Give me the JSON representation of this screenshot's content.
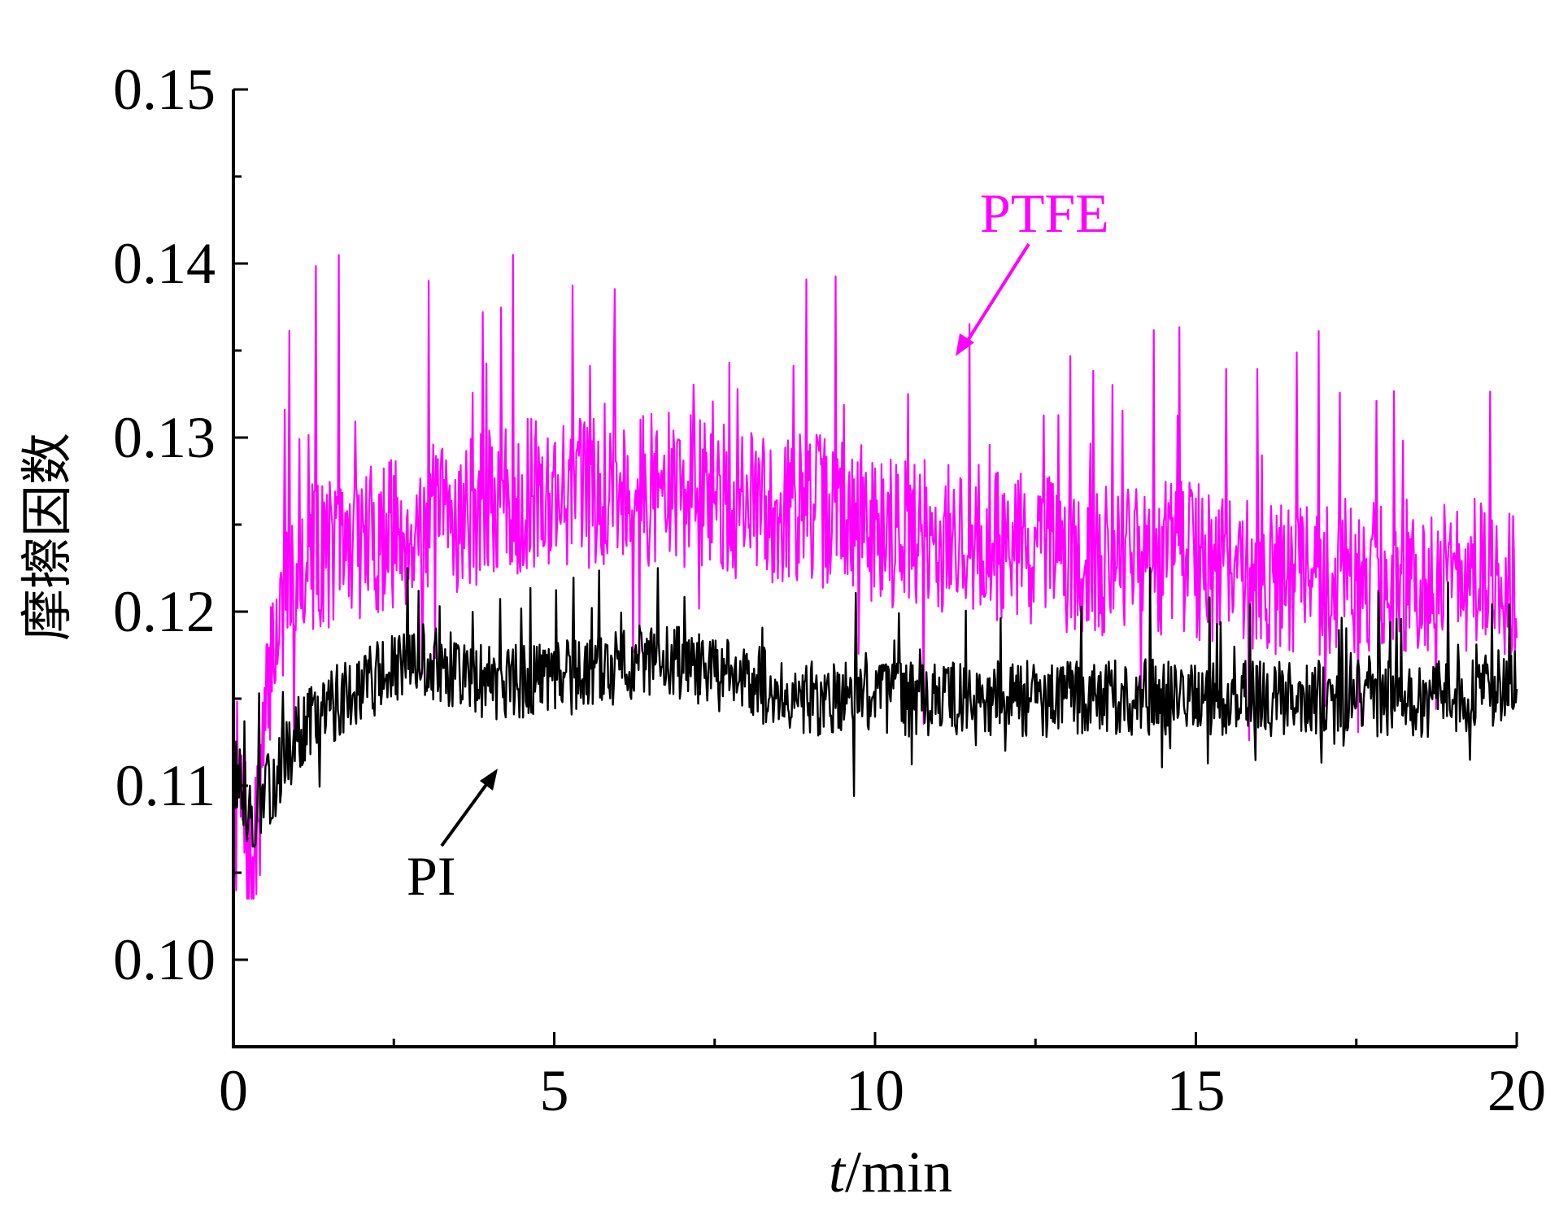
{
  "chart_data": {
    "type": "line",
    "title": "",
    "xlabel_italic": "t",
    "xlabel_rest": "/min",
    "ylabel": "摩擦因数",
    "xlim": [
      0,
      20
    ],
    "ylim": [
      0.095,
      0.15
    ],
    "x_ticks": [
      "0",
      "5",
      "10",
      "15",
      "20"
    ],
    "y_ticks": [
      "0.10",
      "0.11",
      "0.12",
      "0.13",
      "0.14",
      "0.15"
    ],
    "grid": false,
    "legend": "none (inline annotations with arrows)",
    "series": [
      {
        "name": "PTFE",
        "color": "#ff00ff",
        "trend": [
          [
            0,
            0.112
          ],
          [
            0.3,
            0.104
          ],
          [
            0.6,
            0.118
          ],
          [
            1,
            0.123
          ],
          [
            2,
            0.124
          ],
          [
            3,
            0.125
          ],
          [
            4,
            0.126
          ],
          [
            5,
            0.127
          ],
          [
            6,
            0.127
          ],
          [
            7,
            0.127
          ],
          [
            8,
            0.126
          ],
          [
            9,
            0.126
          ],
          [
            10,
            0.125
          ],
          [
            11,
            0.124
          ],
          [
            12,
            0.124
          ],
          [
            13,
            0.123
          ],
          [
            14,
            0.123
          ],
          [
            15,
            0.123
          ],
          [
            16,
            0.122
          ],
          [
            17,
            0.122
          ],
          [
            18,
            0.122
          ],
          [
            19,
            0.122
          ],
          [
            20,
            0.122
          ]
        ],
        "min": 0.1035,
        "max": 0.1405
      },
      {
        "name": "PI",
        "color": "#000000",
        "trend": [
          [
            0,
            0.111
          ],
          [
            0.3,
            0.108
          ],
          [
            0.6,
            0.11
          ],
          [
            1,
            0.113
          ],
          [
            2,
            0.116
          ],
          [
            3,
            0.117
          ],
          [
            4,
            0.116
          ],
          [
            5,
            0.116
          ],
          [
            6,
            0.117
          ],
          [
            7,
            0.117
          ],
          [
            8,
            0.116
          ],
          [
            9,
            0.115
          ],
          [
            10,
            0.115
          ],
          [
            11,
            0.115
          ],
          [
            12,
            0.115
          ],
          [
            13,
            0.115
          ],
          [
            14,
            0.115
          ],
          [
            15,
            0.115
          ],
          [
            16,
            0.115
          ],
          [
            17,
            0.115
          ],
          [
            18,
            0.115
          ],
          [
            19,
            0.115
          ],
          [
            20,
            0.116
          ]
        ],
        "min": 0.1065,
        "max": 0.1225
      }
    ],
    "annotations": [
      {
        "text": "PTFE",
        "color": "#ff00ff",
        "points_to": [
          11.2,
          0.135
        ]
      },
      {
        "text": "PI",
        "color": "#000000",
        "points_to": [
          4.1,
          0.111
        ]
      }
    ]
  }
}
